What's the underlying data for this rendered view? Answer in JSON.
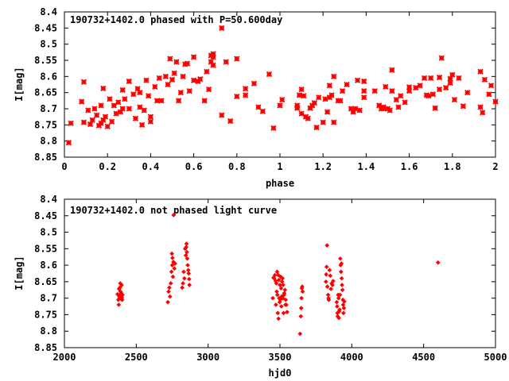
{
  "chart_data": [
    {
      "type": "scatter",
      "title": "190732+1402.0 phased with P=50.600day",
      "xlabel": "phase",
      "ylabel": "I[mag]",
      "xlim": [
        0,
        2
      ],
      "ylim": [
        8.85,
        8.4
      ],
      "y_inverted": true,
      "xticks": [
        0,
        0.2,
        0.4,
        0.6,
        0.8,
        1,
        1.2,
        1.4,
        1.6,
        1.8,
        2
      ],
      "xtick_labels": [
        "0",
        "0.2",
        "0.4",
        "0.6",
        "0.8",
        "1",
        "1.2",
        "1.4",
        "1.6",
        "1.8",
        "2"
      ],
      "yticks": [
        8.4,
        8.45,
        8.5,
        8.55,
        8.6,
        8.65,
        8.7,
        8.75,
        8.8,
        8.85
      ],
      "ytick_labels": [
        "8.4",
        "8.45",
        "8.5",
        "8.55",
        "8.6",
        "8.65",
        "8.7",
        "8.75",
        "8.8",
        "8.85"
      ],
      "marker": "star",
      "color": "#ff0000",
      "grid": false,
      "points": [
        [
          0.02,
          8.805
        ],
        [
          0.03,
          8.745
        ],
        [
          0.08,
          8.678
        ],
        [
          0.09,
          8.742
        ],
        [
          0.09,
          8.617
        ],
        [
          0.11,
          8.705
        ],
        [
          0.12,
          8.748
        ],
        [
          0.13,
          8.735
        ],
        [
          0.14,
          8.7
        ],
        [
          0.15,
          8.72
        ],
        [
          0.16,
          8.752
        ],
        [
          0.17,
          8.745
        ],
        [
          0.17,
          8.69
        ],
        [
          0.18,
          8.735
        ],
        [
          0.18,
          8.637
        ],
        [
          0.19,
          8.725
        ],
        [
          0.2,
          8.755
        ],
        [
          0.21,
          8.67
        ],
        [
          0.22,
          8.74
        ],
        [
          0.23,
          8.69
        ],
        [
          0.24,
          8.715
        ],
        [
          0.25,
          8.68
        ],
        [
          0.26,
          8.71
        ],
        [
          0.27,
          8.642
        ],
        [
          0.27,
          8.7
        ],
        [
          0.28,
          8.67
        ],
        [
          0.3,
          8.615
        ],
        [
          0.3,
          8.7
        ],
        [
          0.32,
          8.655
        ],
        [
          0.33,
          8.73
        ],
        [
          0.34,
          8.638
        ],
        [
          0.35,
          8.65
        ],
        [
          0.35,
          8.695
        ],
        [
          0.36,
          8.75
        ],
        [
          0.37,
          8.705
        ],
        [
          0.38,
          8.612
        ],
        [
          0.39,
          8.66
        ],
        [
          0.4,
          8.725
        ],
        [
          0.4,
          8.74
        ],
        [
          0.42,
          8.632
        ],
        [
          0.43,
          8.675
        ],
        [
          0.44,
          8.605
        ],
        [
          0.45,
          8.675
        ],
        [
          0.47,
          8.6
        ],
        [
          0.48,
          8.625
        ],
        [
          0.49,
          8.545
        ],
        [
          0.5,
          8.61
        ],
        [
          0.51,
          8.59
        ],
        [
          0.52,
          8.555
        ],
        [
          0.53,
          8.675
        ],
        [
          0.54,
          8.65
        ],
        [
          0.55,
          8.6
        ],
        [
          0.56,
          8.562
        ],
        [
          0.57,
          8.56
        ],
        [
          0.58,
          8.645
        ],
        [
          0.6,
          8.54
        ],
        [
          0.6,
          8.612
        ],
        [
          0.62,
          8.615
        ],
        [
          0.63,
          8.608
        ],
        [
          0.65,
          8.675
        ],
        [
          0.66,
          8.585
        ],
        [
          0.67,
          8.64
        ],
        [
          0.68,
          8.555
        ],
        [
          0.68,
          8.535
        ],
        [
          0.69,
          8.54
        ],
        [
          0.69,
          8.53
        ],
        [
          0.69,
          8.565
        ],
        [
          0.73,
          8.45
        ],
        [
          0.73,
          8.72
        ],
        [
          0.75,
          8.555
        ],
        [
          0.77,
          8.738
        ],
        [
          0.8,
          8.662
        ],
        [
          0.8,
          8.545
        ],
        [
          0.84,
          8.658
        ],
        [
          0.84,
          8.638
        ],
        [
          0.88,
          8.622
        ],
        [
          0.9,
          8.695
        ],
        [
          0.92,
          8.708
        ],
        [
          0.95,
          8.593
        ],
        [
          0.97,
          8.76
        ],
        [
          1.0,
          8.69
        ],
        [
          1.01,
          8.672
        ],
        [
          1.08,
          8.69
        ],
        [
          1.08,
          8.698
        ],
        [
          1.09,
          8.658
        ],
        [
          1.1,
          8.715
        ],
        [
          1.1,
          8.64
        ],
        [
          1.11,
          8.66
        ],
        [
          1.12,
          8.725
        ],
        [
          1.13,
          8.73
        ],
        [
          1.14,
          8.698
        ],
        [
          1.15,
          8.69
        ],
        [
          1.16,
          8.682
        ],
        [
          1.17,
          8.758
        ],
        [
          1.18,
          8.665
        ],
        [
          1.2,
          8.742
        ],
        [
          1.21,
          8.67
        ],
        [
          1.22,
          8.71
        ],
        [
          1.23,
          8.628
        ],
        [
          1.23,
          8.665
        ],
        [
          1.24,
          8.658
        ],
        [
          1.25,
          8.742
        ],
        [
          1.25,
          8.6
        ],
        [
          1.27,
          8.675
        ],
        [
          1.28,
          8.675
        ],
        [
          1.29,
          8.645
        ],
        [
          1.31,
          8.625
        ],
        [
          1.33,
          8.7
        ],
        [
          1.34,
          8.71
        ],
        [
          1.35,
          8.7
        ],
        [
          1.36,
          8.612
        ],
        [
          1.37,
          8.705
        ],
        [
          1.39,
          8.615
        ],
        [
          1.39,
          8.665
        ],
        [
          1.39,
          8.645
        ],
        [
          1.44,
          8.645
        ],
        [
          1.46,
          8.69
        ],
        [
          1.47,
          8.7
        ],
        [
          1.48,
          8.695
        ],
        [
          1.48,
          8.7
        ],
        [
          1.49,
          8.632
        ],
        [
          1.5,
          8.7
        ],
        [
          1.51,
          8.705
        ],
        [
          1.52,
          8.645
        ],
        [
          1.52,
          8.58
        ],
        [
          1.54,
          8.672
        ],
        [
          1.55,
          8.695
        ],
        [
          1.56,
          8.66
        ],
        [
          1.58,
          8.68
        ],
        [
          1.6,
          8.645
        ],
        [
          1.6,
          8.633
        ],
        [
          1.63,
          8.635
        ],
        [
          1.65,
          8.628
        ],
        [
          1.67,
          8.605
        ],
        [
          1.68,
          8.658
        ],
        [
          1.69,
          8.66
        ],
        [
          1.7,
          8.605
        ],
        [
          1.71,
          8.655
        ],
        [
          1.72,
          8.698
        ],
        [
          1.74,
          8.64
        ],
        [
          1.74,
          8.603
        ],
        [
          1.75,
          8.543
        ],
        [
          1.77,
          8.635
        ],
        [
          1.79,
          8.607
        ],
        [
          1.79,
          8.62
        ],
        [
          1.8,
          8.595
        ],
        [
          1.81,
          8.672
        ],
        [
          1.83,
          8.605
        ],
        [
          1.85,
          8.692
        ],
        [
          1.87,
          8.65
        ],
        [
          1.93,
          8.695
        ],
        [
          1.93,
          8.585
        ],
        [
          1.94,
          8.712
        ],
        [
          1.95,
          8.61
        ],
        [
          1.97,
          8.655
        ],
        [
          1.98,
          8.628
        ],
        [
          2.0,
          8.678
        ]
      ]
    },
    {
      "type": "scatter",
      "title": "190732+1402.0 not phased light curve",
      "xlabel": "hjd0",
      "ylabel": "I[mag]",
      "xlim": [
        2000,
        5000
      ],
      "ylim": [
        8.85,
        8.4
      ],
      "y_inverted": true,
      "xticks": [
        2000,
        2500,
        3000,
        3500,
        4000,
        4500,
        5000
      ],
      "xtick_labels": [
        "2000",
        "2500",
        "3000",
        "3500",
        "4000",
        "4500",
        "5000"
      ],
      "yticks": [
        8.4,
        8.45,
        8.5,
        8.55,
        8.6,
        8.65,
        8.7,
        8.75,
        8.8,
        8.85
      ],
      "ytick_labels": [
        "8.4",
        "8.45",
        "8.5",
        "8.55",
        "8.6",
        "8.65",
        "8.7",
        "8.75",
        "8.8",
        "8.85"
      ],
      "marker": "diamond",
      "color": "#ff0000",
      "grid": false,
      "points": [
        [
          2370,
          8.688
        ],
        [
          2375,
          8.705
        ],
        [
          2378,
          8.72
        ],
        [
          2380,
          8.672
        ],
        [
          2382,
          8.695
        ],
        [
          2384,
          8.7
        ],
        [
          2386,
          8.668
        ],
        [
          2388,
          8.69
        ],
        [
          2389,
          8.655
        ],
        [
          2390,
          8.68
        ],
        [
          2392,
          8.695
        ],
        [
          2394,
          8.702
        ],
        [
          2396,
          8.685
        ],
        [
          2398,
          8.66
        ],
        [
          2400,
          8.698
        ],
        [
          2402,
          8.705
        ],
        [
          2404,
          8.69
        ],
        [
          2720,
          8.712
        ],
        [
          2725,
          8.68
        ],
        [
          2730,
          8.668
        ],
        [
          2735,
          8.695
        ],
        [
          2740,
          8.655
        ],
        [
          2745,
          8.62
        ],
        [
          2748,
          8.565
        ],
        [
          2750,
          8.6
        ],
        [
          2752,
          8.578
        ],
        [
          2755,
          8.635
        ],
        [
          2758,
          8.59
        ],
        [
          2760,
          8.448
        ],
        [
          2765,
          8.61
        ],
        [
          2770,
          8.595
        ],
        [
          2820,
          8.668
        ],
        [
          2825,
          8.655
        ],
        [
          2830,
          8.62
        ],
        [
          2835,
          8.64
        ],
        [
          2840,
          8.55
        ],
        [
          2845,
          8.57
        ],
        [
          2848,
          8.545
        ],
        [
          2850,
          8.535
        ],
        [
          2852,
          8.56
        ],
        [
          2855,
          8.58
        ],
        [
          2858,
          8.6
        ],
        [
          2862,
          8.615
        ],
        [
          2865,
          8.625
        ],
        [
          2868,
          8.642
        ],
        [
          2870,
          8.66
        ],
        [
          3450,
          8.7
        ],
        [
          3455,
          8.638
        ],
        [
          3460,
          8.64
        ],
        [
          3465,
          8.63
        ],
        [
          3470,
          8.648
        ],
        [
          3472,
          8.72
        ],
        [
          3475,
          8.655
        ],
        [
          3478,
          8.68
        ],
        [
          3480,
          8.62
        ],
        [
          3482,
          8.69
        ],
        [
          3485,
          8.745
        ],
        [
          3488,
          8.63
        ],
        [
          3490,
          8.762
        ],
        [
          3492,
          8.645
        ],
        [
          3495,
          8.7
        ],
        [
          3498,
          8.712
        ],
        [
          3500,
          8.66
        ],
        [
          3502,
          8.705
        ],
        [
          3505,
          8.635
        ],
        [
          3508,
          8.67
        ],
        [
          3510,
          8.725
        ],
        [
          3512,
          8.695
        ],
        [
          3515,
          8.65
        ],
        [
          3518,
          8.64
        ],
        [
          3520,
          8.7
        ],
        [
          3522,
          8.66
        ],
        [
          3525,
          8.745
        ],
        [
          3528,
          8.69
        ],
        [
          3530,
          8.685
        ],
        [
          3535,
          8.675
        ],
        [
          3538,
          8.72
        ],
        [
          3540,
          8.705
        ],
        [
          3545,
          8.72
        ],
        [
          3550,
          8.742
        ],
        [
          3640,
          8.808
        ],
        [
          3645,
          8.755
        ],
        [
          3648,
          8.73
        ],
        [
          3650,
          8.7
        ],
        [
          3652,
          8.67
        ],
        [
          3655,
          8.665
        ],
        [
          3658,
          8.68
        ],
        [
          3820,
          8.65
        ],
        [
          3822,
          8.628
        ],
        [
          3825,
          8.605
        ],
        [
          3828,
          8.54
        ],
        [
          3830,
          8.665
        ],
        [
          3835,
          8.69
        ],
        [
          3838,
          8.7
        ],
        [
          3840,
          8.705
        ],
        [
          3845,
          8.615
        ],
        [
          3850,
          8.632
        ],
        [
          3855,
          8.672
        ],
        [
          3860,
          8.655
        ],
        [
          3865,
          8.66
        ],
        [
          3870,
          8.648
        ],
        [
          3895,
          8.712
        ],
        [
          3898,
          8.725
        ],
        [
          3900,
          8.745
        ],
        [
          3902,
          8.755
        ],
        [
          3905,
          8.69
        ],
        [
          3908,
          8.7
        ],
        [
          3910,
          8.76
        ],
        [
          3912,
          8.74
        ],
        [
          3915,
          8.735
        ],
        [
          3918,
          8.69
        ],
        [
          3920,
          8.58
        ],
        [
          3922,
          8.6
        ],
        [
          3925,
          8.62
        ],
        [
          3928,
          8.595
        ],
        [
          3930,
          8.64
        ],
        [
          3932,
          8.66
        ],
        [
          3935,
          8.675
        ],
        [
          3938,
          8.705
        ],
        [
          3940,
          8.72
        ],
        [
          3942,
          8.745
        ],
        [
          3945,
          8.73
        ],
        [
          3948,
          8.71
        ],
        [
          4600,
          8.592
        ]
      ]
    }
  ]
}
